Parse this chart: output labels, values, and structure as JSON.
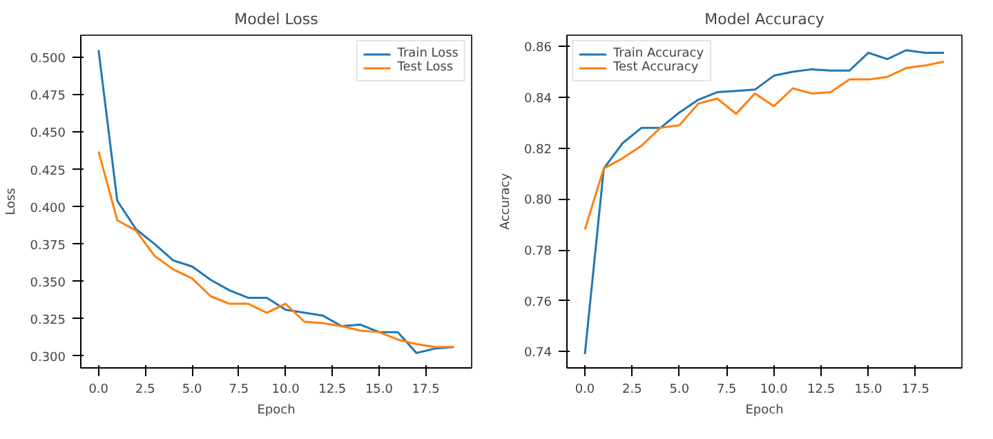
{
  "chart_data": [
    {
      "type": "line",
      "title": "Model Loss",
      "xlabel": "Epoch",
      "ylabel": "Loss",
      "x": [
        0,
        1,
        2,
        3,
        4,
        5,
        6,
        7,
        8,
        9,
        10,
        11,
        12,
        13,
        14,
        15,
        16,
        17,
        18,
        19
      ],
      "series": [
        {
          "name": "Train Loss",
          "color": "#1f77b4",
          "values": [
            0.505,
            0.404,
            0.385,
            0.375,
            0.364,
            0.36,
            0.351,
            0.344,
            0.339,
            0.339,
            0.331,
            0.329,
            0.327,
            0.32,
            0.321,
            0.316,
            0.316,
            0.302,
            0.305,
            0.306
          ]
        },
        {
          "name": "Test Loss",
          "color": "#ff7f0e",
          "values": [
            0.437,
            0.391,
            0.384,
            0.367,
            0.358,
            0.352,
            0.34,
            0.335,
            0.335,
            0.329,
            0.335,
            0.323,
            0.322,
            0.32,
            0.317,
            0.316,
            0.311,
            0.308,
            0.306,
            0.306
          ]
        }
      ],
      "xlim": [
        -0.95,
        19.95
      ],
      "ylim": [
        0.292,
        0.515
      ],
      "xticks": [
        {
          "value": 0,
          "label": "0.0"
        },
        {
          "value": 2.5,
          "label": "2.5"
        },
        {
          "value": 5,
          "label": "5.0"
        },
        {
          "value": 7.5,
          "label": "7.5"
        },
        {
          "value": 10,
          "label": "10.0"
        },
        {
          "value": 12.5,
          "label": "12.5"
        },
        {
          "value": 15,
          "label": "15.0"
        },
        {
          "value": 17.5,
          "label": "17.5"
        }
      ],
      "yticks": [
        {
          "value": 0.3,
          "label": "0.300"
        },
        {
          "value": 0.325,
          "label": "0.325"
        },
        {
          "value": 0.35,
          "label": "0.350"
        },
        {
          "value": 0.375,
          "label": "0.375"
        },
        {
          "value": 0.4,
          "label": "0.400"
        },
        {
          "value": 0.425,
          "label": "0.425"
        },
        {
          "value": 0.45,
          "label": "0.450"
        },
        {
          "value": 0.475,
          "label": "0.475"
        },
        {
          "value": 0.5,
          "label": "0.500"
        }
      ],
      "grid": false,
      "legend": "top right",
      "line_style": "solid"
    },
    {
      "type": "line",
      "title": "Model Accuracy",
      "xlabel": "Epoch",
      "ylabel": "Accuracy",
      "x": [
        0,
        1,
        2,
        3,
        4,
        5,
        6,
        7,
        8,
        9,
        10,
        11,
        12,
        13,
        14,
        15,
        16,
        17,
        18,
        19
      ],
      "series": [
        {
          "name": "Train Accuracy",
          "color": "#1f77b4",
          "values": [
            0.739,
            0.812,
            0.822,
            0.828,
            0.828,
            0.834,
            0.839,
            0.842,
            0.8425,
            0.843,
            0.8485,
            0.85,
            0.851,
            0.8505,
            0.8505,
            0.8575,
            0.855,
            0.8585,
            0.8575,
            0.8575
          ]
        },
        {
          "name": "Test Accuracy",
          "color": "#ff7f0e",
          "values": [
            0.788,
            0.812,
            0.816,
            0.821,
            0.828,
            0.829,
            0.8375,
            0.8395,
            0.8335,
            0.8415,
            0.8365,
            0.8435,
            0.8415,
            0.842,
            0.847,
            0.847,
            0.848,
            0.8515,
            0.8525,
            0.854
          ]
        }
      ],
      "xlim": [
        -0.95,
        19.95
      ],
      "ylim": [
        0.7336,
        0.8644
      ],
      "xticks": [
        {
          "value": 0,
          "label": "0.0"
        },
        {
          "value": 2.5,
          "label": "2.5"
        },
        {
          "value": 5,
          "label": "5.0"
        },
        {
          "value": 7.5,
          "label": "7.5"
        },
        {
          "value": 10,
          "label": "10.0"
        },
        {
          "value": 12.5,
          "label": "12.5"
        },
        {
          "value": 15,
          "label": "15.0"
        },
        {
          "value": 17.5,
          "label": "17.5"
        }
      ],
      "yticks": [
        {
          "value": 0.74,
          "label": "0.74"
        },
        {
          "value": 0.76,
          "label": "0.76"
        },
        {
          "value": 0.78,
          "label": "0.78"
        },
        {
          "value": 0.8,
          "label": "0.80"
        },
        {
          "value": 0.82,
          "label": "0.82"
        },
        {
          "value": 0.84,
          "label": "0.84"
        },
        {
          "value": 0.86,
          "label": "0.86"
        }
      ],
      "grid": false,
      "legend": "top left",
      "line_style": "solid"
    }
  ]
}
